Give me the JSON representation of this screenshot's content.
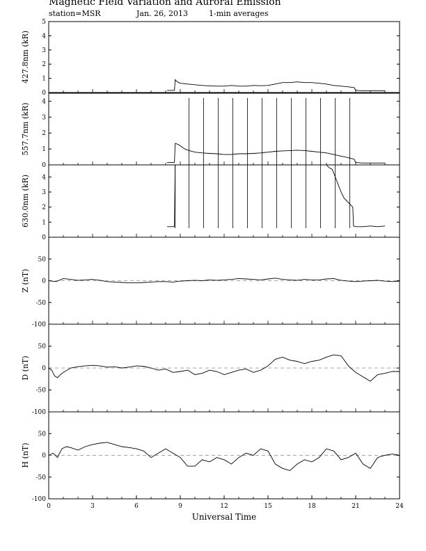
{
  "header": {
    "title": "Magnetic Field Variation and Auroral Emission",
    "station": "station=MSR",
    "date": "Jan. 26, 2013",
    "averaging": "1-min averages"
  },
  "chart_data": {
    "type": "line",
    "xlabel": "Universal Time",
    "x_ticks": [
      0,
      3,
      6,
      9,
      12,
      15,
      18,
      21,
      24
    ],
    "xlim": [
      0,
      24
    ],
    "panels": [
      {
        "ylabel": "427.8nm (kR)",
        "ylim": [
          0,
          5
        ],
        "y_ticks": [
          0,
          1,
          2,
          3,
          4,
          5
        ],
        "zero_line": false,
        "series": [
          {
            "x": [
              8.1,
              8.6,
              8.65,
              8.8,
              9,
              9.5,
              10,
              10.5,
              11,
              11.5,
              12,
              12.5,
              13,
              13.5,
              14,
              14.5,
              15,
              15.5,
              16,
              16.5,
              17,
              17.5,
              18,
              18.5,
              19,
              19.5,
              20,
              20.5,
              20.9,
              21,
              21.5,
              22,
              22.5,
              23
            ],
            "y": [
              0.15,
              0.15,
              0.9,
              0.75,
              0.65,
              0.6,
              0.55,
              0.5,
              0.47,
              0.45,
              0.45,
              0.5,
              0.45,
              0.45,
              0.5,
              0.48,
              0.5,
              0.6,
              0.7,
              0.7,
              0.75,
              0.7,
              0.7,
              0.65,
              0.6,
              0.5,
              0.45,
              0.4,
              0.35,
              0.15,
              0.12,
              0.12,
              0.12,
              0.12
            ]
          }
        ]
      },
      {
        "ylabel": "557.7nm (kR)",
        "ylim": [
          0,
          4.5
        ],
        "y_ticks": [
          0,
          1,
          2,
          3,
          4
        ],
        "zero_line": false,
        "spikes": {
          "x": [
            9.6,
            10.6,
            11.6,
            12.6,
            13.6,
            14.6,
            15.6,
            16.6,
            17.6,
            18.6,
            19.6,
            20.6
          ],
          "top": 4.2
        },
        "series": [
          {
            "x": [
              8.1,
              8.6,
              8.65,
              8.8,
              9,
              9.3,
              9.6,
              10,
              10.5,
              11,
              11.5,
              12,
              12.5,
              13,
              13.5,
              14,
              14.5,
              15,
              15.5,
              16,
              16.5,
              17,
              17.5,
              18,
              18.5,
              19,
              19.5,
              20,
              20.5,
              20.9,
              21,
              21.5,
              22,
              22.5,
              23
            ],
            "y": [
              0.15,
              0.15,
              1.35,
              1.3,
              1.2,
              1.0,
              0.9,
              0.8,
              0.75,
              0.72,
              0.7,
              0.65,
              0.65,
              0.7,
              0.7,
              0.72,
              0.75,
              0.8,
              0.85,
              0.88,
              0.9,
              0.92,
              0.9,
              0.85,
              0.8,
              0.75,
              0.65,
              0.55,
              0.45,
              0.35,
              0.15,
              0.12,
              0.12,
              0.12,
              0.12
            ]
          }
        ]
      },
      {
        "ylabel": "630.0nm (kR)",
        "ylim": [
          0,
          4.8
        ],
        "y_ticks": [
          0,
          1,
          2,
          3,
          4
        ],
        "zero_line": false,
        "spikes": {
          "x": [
            8.65,
            9.6,
            10.6,
            11.6,
            12.6,
            13.6,
            14.6,
            15.6,
            16.6,
            17.6,
            18.6,
            19.6,
            20.6
          ],
          "top": 4.8,
          "bottom": 0.6
        },
        "series": [
          {
            "x": [
              8.1,
              8.6,
              8.65,
              8.7,
              19,
              19.2,
              19.4,
              19.6,
              19.8,
              20.0,
              20.2,
              20.4,
              20.6,
              20.8,
              20.85,
              21,
              21.5,
              22,
              22.5,
              23
            ],
            "y": [
              0.7,
              0.7,
              4.8,
              4.8,
              4.8,
              4.6,
              4.5,
              4.0,
              3.5,
              3.0,
              2.6,
              2.4,
              2.2,
              2.0,
              0.75,
              0.7,
              0.7,
              0.75,
              0.7,
              0.75
            ]
          }
        ]
      },
      {
        "ylabel": "Z (nT)",
        "ylim": [
          -100,
          100
        ],
        "y_ticks": [
          -100,
          -50,
          0,
          50
        ],
        "zero_line": true,
        "series": [
          {
            "x": [
              0,
              0.5,
              1,
              1.5,
              2,
              2.5,
              3,
              3.5,
              4,
              4.5,
              5,
              5.5,
              6,
              6.5,
              7,
              7.5,
              8,
              8.5,
              9,
              9.5,
              10,
              10.5,
              11,
              11.5,
              12,
              12.5,
              13,
              13.5,
              14,
              14.5,
              15,
              15.5,
              16,
              16.5,
              17,
              17.5,
              18,
              18.5,
              19,
              19.5,
              20,
              20.5,
              21,
              21.5,
              22,
              22.5,
              23,
              23.5,
              24
            ],
            "y": [
              0,
              -2,
              5,
              3,
              1,
              2,
              3,
              1,
              -2,
              -3,
              -4,
              -5,
              -5,
              -4,
              -3,
              -2,
              -2,
              -3,
              -1,
              0,
              1,
              0,
              2,
              1,
              2,
              3,
              5,
              4,
              3,
              2,
              4,
              6,
              3,
              2,
              1,
              3,
              2,
              2,
              4,
              5,
              1,
              -1,
              -2,
              -1,
              0,
              1,
              -1,
              -2,
              -1
            ]
          }
        ]
      },
      {
        "ylabel": "D (nT)",
        "ylim": [
          -100,
          100
        ],
        "y_ticks": [
          -100,
          -50,
          0,
          50
        ],
        "zero_line": true,
        "series": [
          {
            "x": [
              0,
              0.2,
              0.4,
              0.6,
              0.8,
              1,
              1.5,
              2,
              2.5,
              3,
              3.5,
              4,
              4.5,
              5,
              5.5,
              6,
              6.5,
              7,
              7.5,
              8,
              8.5,
              9,
              9.5,
              10,
              10.5,
              11,
              11.5,
              12,
              12.5,
              13,
              13.5,
              14,
              14.5,
              15,
              15.5,
              16,
              16.5,
              17,
              17.5,
              18,
              18.5,
              19,
              19.5,
              20,
              20.5,
              21,
              21.5,
              22,
              22.5,
              23,
              23.5,
              24
            ],
            "y": [
              0,
              -5,
              -18,
              -22,
              -15,
              -10,
              0,
              3,
              5,
              6,
              5,
              2,
              3,
              0,
              2,
              5,
              4,
              0,
              -5,
              -2,
              -10,
              -8,
              -5,
              -15,
              -12,
              -5,
              -8,
              -15,
              -10,
              -5,
              -2,
              -10,
              -5,
              5,
              20,
              25,
              18,
              15,
              10,
              15,
              18,
              25,
              30,
              28,
              5,
              -10,
              -20,
              -30,
              -15,
              -12,
              -8,
              -8
            ]
          }
        ]
      },
      {
        "ylabel": "H (nT)",
        "ylim": [
          -100,
          100
        ],
        "y_ticks": [
          -100,
          -50,
          0,
          50
        ],
        "zero_line": true,
        "series": [
          {
            "x": [
              0,
              0.3,
              0.6,
              0.9,
              1.2,
              1.5,
              2,
              2.5,
              3,
              3.5,
              4,
              4.5,
              5,
              5.5,
              6,
              6.5,
              7,
              7.5,
              8,
              8.5,
              9,
              9.5,
              10,
              10.5,
              11,
              11.5,
              12,
              12.5,
              13,
              13.5,
              14,
              14.5,
              15,
              15.5,
              16,
              16.5,
              17,
              17.5,
              18,
              18.5,
              19,
              19.5,
              20,
              20.5,
              21,
              21.5,
              22,
              22.5,
              23,
              23.5,
              24
            ],
            "y": [
              0,
              5,
              -5,
              15,
              20,
              18,
              12,
              20,
              25,
              28,
              30,
              25,
              20,
              18,
              15,
              10,
              -5,
              5,
              15,
              5,
              -5,
              -25,
              -25,
              -10,
              -15,
              -5,
              -10,
              -20,
              -5,
              5,
              0,
              15,
              10,
              -20,
              -30,
              -35,
              -20,
              -10,
              -15,
              -5,
              15,
              10,
              -10,
              -5,
              5,
              -20,
              -30,
              -5,
              0,
              3,
              0
            ]
          }
        ]
      }
    ]
  }
}
